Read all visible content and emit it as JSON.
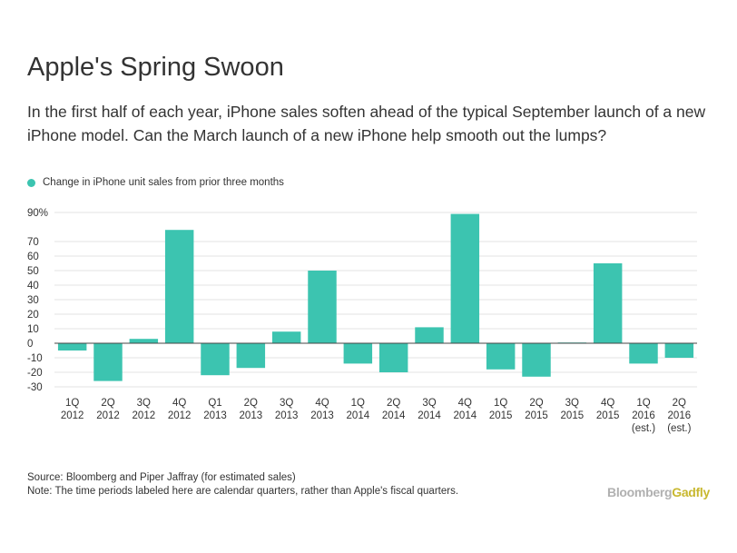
{
  "title": "Apple's Spring Swoon",
  "subtitle": "In the first half of each year, iPhone sales soften ahead of the typical September launch of a new iPhone model. Can the March launch of a new iPhone help smooth out the lumps?",
  "legend": {
    "label": "Change in iPhone unit sales from prior three months",
    "color": "#3cc4b0"
  },
  "footer": {
    "source": "Source: Bloomberg and Piper Jaffray (for estimated sales)",
    "note": "Note: The time periods labeled here are calendar quarters, rather than Apple's fiscal quarters."
  },
  "brand": {
    "part1": "Bloomberg",
    "part2": "Gadfly"
  },
  "colors": {
    "bar": "#3cc4b0",
    "grid": "#e3e3e3",
    "zero": "#444444"
  },
  "chart_data": {
    "type": "bar",
    "categories": [
      [
        "1Q",
        "2012"
      ],
      [
        "2Q",
        "2012"
      ],
      [
        "3Q",
        "2012"
      ],
      [
        "4Q",
        "2012"
      ],
      [
        "Q1",
        "2013"
      ],
      [
        "2Q",
        "2013"
      ],
      [
        "3Q",
        "2013"
      ],
      [
        "4Q",
        "2013"
      ],
      [
        "1Q",
        "2014"
      ],
      [
        "2Q",
        "2014"
      ],
      [
        "3Q",
        "2014"
      ],
      [
        "4Q",
        "2014"
      ],
      [
        "1Q",
        "2015"
      ],
      [
        "2Q",
        "2015"
      ],
      [
        "3Q",
        "2015"
      ],
      [
        "4Q",
        "2015"
      ],
      [
        "1Q",
        "2016",
        "(est.)"
      ],
      [
        "2Q",
        "2016",
        "(est.)"
      ]
    ],
    "values": [
      -5,
      -26,
      3,
      78,
      -22,
      -17,
      8,
      50,
      -14,
      -20,
      11,
      89,
      -18,
      -23,
      0.5,
      55,
      -14,
      -10
    ],
    "ylim": [
      -30,
      90
    ],
    "yticks": [
      -30,
      -20,
      -10,
      0,
      10,
      20,
      30,
      40,
      50,
      60,
      70,
      90
    ],
    "ytick_labels": [
      "-30",
      "-20",
      "-10",
      "0",
      "10",
      "20",
      "30",
      "40",
      "50",
      "60",
      "70",
      "90%"
    ],
    "grid": true
  }
}
